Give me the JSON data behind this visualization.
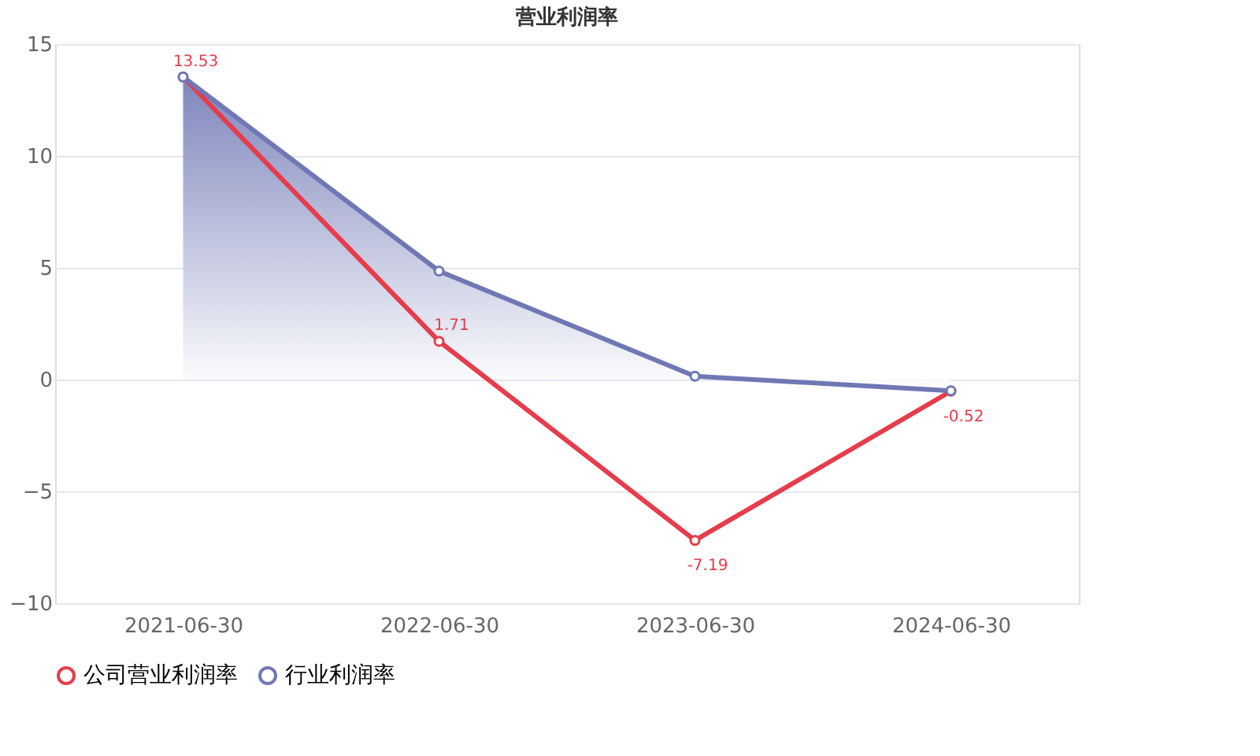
{
  "chart_data": {
    "type": "line",
    "title": "营业利润率",
    "categories": [
      "2021-06-30",
      "2022-06-30",
      "2023-06-30",
      "2024-06-30"
    ],
    "series": [
      {
        "name": "公司营业利润率",
        "color": "#e63c4b",
        "values": [
          13.53,
          1.71,
          -7.19,
          -0.52
        ],
        "value_labels": [
          "13.53",
          "1.71",
          "-7.19",
          "-0.52"
        ]
      },
      {
        "name": "行业利润率",
        "color": "#6f78b5",
        "type": "area",
        "values": [
          13.53,
          4.85,
          0.15,
          -0.5
        ]
      }
    ],
    "ylim": [
      -10,
      15
    ],
    "yticks": [
      -10,
      -5,
      0,
      5,
      10,
      15
    ],
    "grid": "y",
    "legend": "bottom",
    "marker": "circle",
    "line_style": "solid"
  }
}
